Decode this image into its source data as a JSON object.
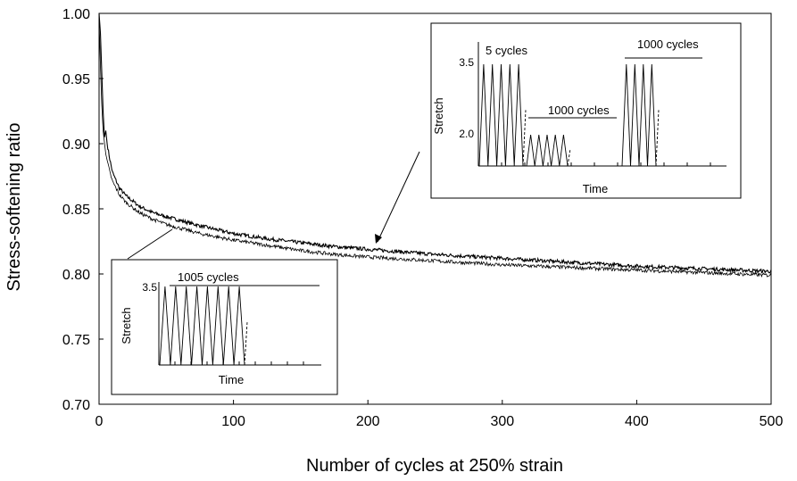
{
  "chart_data": {
    "type": "line",
    "xlabel": "Number of cycles at 250% strain",
    "ylabel": "Stress-softening ratio",
    "xlim": [
      0,
      500
    ],
    "ylim": [
      0.7,
      1.0
    ],
    "x_ticks": [
      "0",
      "100",
      "200",
      "300",
      "400",
      "500"
    ],
    "y_ticks": [
      "0.70",
      "0.75",
      "0.80",
      "0.85",
      "0.90",
      "0.95",
      "1.00"
    ],
    "grid": false,
    "series": [
      {
        "points": [
          [
            0,
            1.0
          ],
          [
            1,
            0.985
          ],
          [
            2,
            0.955
          ],
          [
            3,
            0.925
          ],
          [
            4,
            0.905
          ],
          [
            5,
            0.91
          ],
          [
            6,
            0.9
          ],
          [
            8,
            0.888
          ],
          [
            10,
            0.878
          ],
          [
            15,
            0.866
          ],
          [
            20,
            0.86
          ],
          [
            30,
            0.852
          ],
          [
            40,
            0.847
          ],
          [
            50,
            0.844
          ],
          [
            75,
            0.837
          ],
          [
            100,
            0.831
          ],
          [
            125,
            0.827
          ],
          [
            150,
            0.824
          ],
          [
            175,
            0.821
          ],
          [
            200,
            0.819
          ],
          [
            250,
            0.815
          ],
          [
            300,
            0.812
          ],
          [
            350,
            0.809
          ],
          [
            400,
            0.806
          ],
          [
            450,
            0.804
          ],
          [
            500,
            0.802
          ]
        ]
      },
      {
        "points": [
          [
            0,
            0.995
          ],
          [
            1,
            0.96
          ],
          [
            2,
            0.93
          ],
          [
            3,
            0.91
          ],
          [
            5,
            0.892
          ],
          [
            8,
            0.878
          ],
          [
            10,
            0.871
          ],
          [
            15,
            0.861
          ],
          [
            20,
            0.855
          ],
          [
            30,
            0.847
          ],
          [
            40,
            0.842
          ],
          [
            50,
            0.838
          ],
          [
            75,
            0.831
          ],
          [
            100,
            0.826
          ],
          [
            125,
            0.822
          ],
          [
            150,
            0.818
          ],
          [
            175,
            0.815
          ],
          [
            200,
            0.813
          ],
          [
            250,
            0.81
          ],
          [
            300,
            0.807
          ],
          [
            350,
            0.805
          ],
          [
            400,
            0.803
          ],
          [
            450,
            0.801
          ],
          [
            500,
            0.799
          ]
        ]
      }
    ],
    "insets": [
      {
        "ylabel": "Stretch",
        "xlabel": "Time",
        "y_ticks": [
          "3.5",
          "2.0"
        ],
        "annotations": [
          "5 cycles",
          "1000 cycles",
          "1000 cycles"
        ],
        "segments": [
          {
            "cycles": 5,
            "peak": 3.5
          },
          {
            "cycles": 5,
            "peak": 2.0
          },
          {
            "cycles": 4,
            "peak": 3.5
          }
        ]
      },
      {
        "ylabel": "Stretch",
        "xlabel": "Time",
        "y_ticks": [
          "3.5"
        ],
        "annotations": [
          "1005 cycles"
        ],
        "segments": [
          {
            "cycles": 8,
            "peak": 3.5
          }
        ]
      }
    ]
  }
}
